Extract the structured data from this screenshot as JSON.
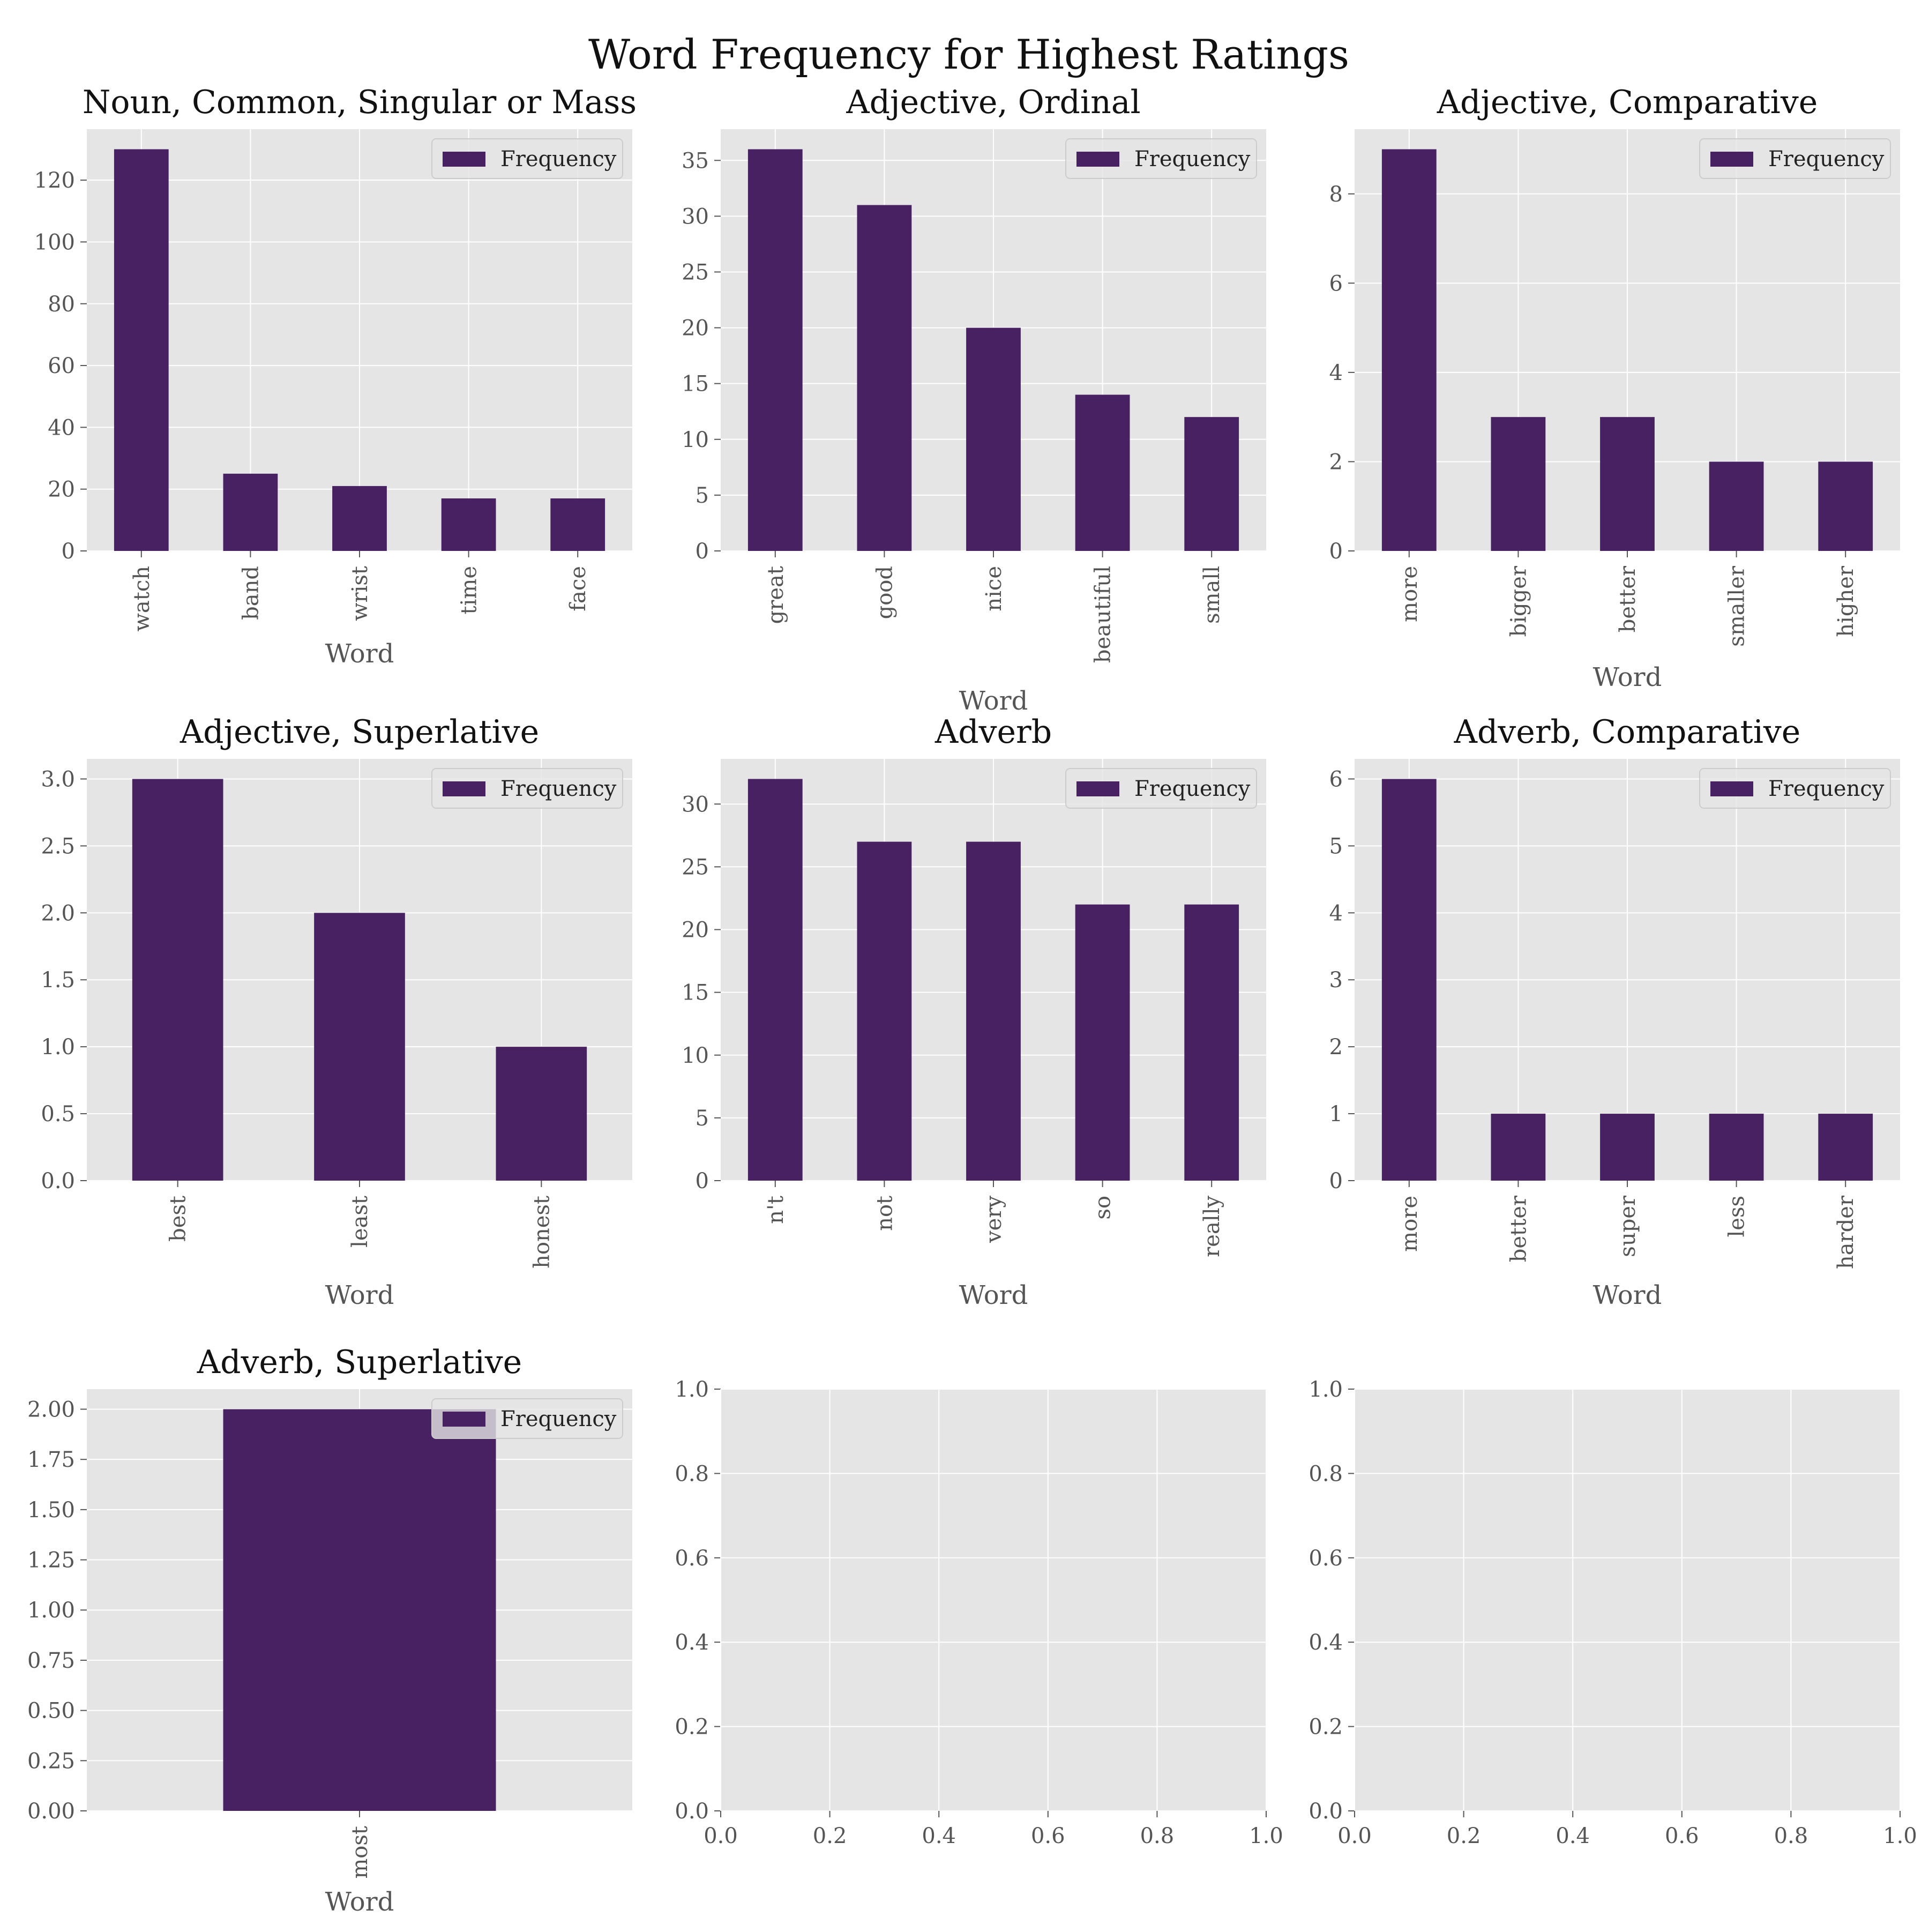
{
  "figure": {
    "title": "Word Frequency for Highest Ratings",
    "bar_color": "#482162",
    "axes_facecolor": "#e5e5e5",
    "grid_color": "#ffffff",
    "legend_label": "Frequency"
  },
  "chart_data": [
    {
      "type": "bar",
      "title": "Noun, Common, Singular or Mass",
      "xlabel": "Word",
      "ylabel": "",
      "categories": [
        "watch",
        "band",
        "wrist",
        "time",
        "face"
      ],
      "series": [
        {
          "name": "Frequency",
          "values": [
            130,
            25,
            21,
            17,
            17
          ]
        }
      ],
      "ylim": [
        0,
        136.5
      ],
      "yticks": [
        0,
        20,
        40,
        60,
        80,
        100,
        120
      ],
      "ytick_labels": [
        "0",
        "20",
        "40",
        "60",
        "80",
        "100",
        "120"
      ],
      "grid": true,
      "legend": "top-right"
    },
    {
      "type": "bar",
      "title": "Adjective, Ordinal",
      "xlabel": "Word",
      "ylabel": "",
      "categories": [
        "great",
        "good",
        "nice",
        "beautiful",
        "small"
      ],
      "series": [
        {
          "name": "Frequency",
          "values": [
            36,
            31,
            20,
            14,
            12
          ]
        }
      ],
      "ylim": [
        0,
        37.8
      ],
      "yticks": [
        0,
        5,
        10,
        15,
        20,
        25,
        30,
        35
      ],
      "ytick_labels": [
        "0",
        "5",
        "10",
        "15",
        "20",
        "25",
        "30",
        "35"
      ],
      "grid": true,
      "legend": "top-right"
    },
    {
      "type": "bar",
      "title": "Adjective, Comparative",
      "xlabel": "Word",
      "ylabel": "",
      "categories": [
        "more",
        "bigger",
        "better",
        "smaller",
        "higher"
      ],
      "series": [
        {
          "name": "Frequency",
          "values": [
            9,
            3,
            3,
            2,
            2
          ]
        }
      ],
      "ylim": [
        0,
        9.45
      ],
      "yticks": [
        0,
        2,
        4,
        6,
        8
      ],
      "ytick_labels": [
        "0",
        "2",
        "4",
        "6",
        "8"
      ],
      "grid": true,
      "legend": "top-right"
    },
    {
      "type": "bar",
      "title": "Adjective, Superlative",
      "xlabel": "Word",
      "ylabel": "",
      "categories": [
        "best",
        "least",
        "honest"
      ],
      "series": [
        {
          "name": "Frequency",
          "values": [
            3,
            2,
            1
          ]
        }
      ],
      "ylim": [
        0,
        3.15
      ],
      "yticks": [
        0,
        0.5,
        1,
        1.5,
        2,
        2.5,
        3
      ],
      "ytick_labels": [
        "0.0",
        "0.5",
        "1.0",
        "1.5",
        "2.0",
        "2.5",
        "3.0"
      ],
      "grid": true,
      "legend": "top-right"
    },
    {
      "type": "bar",
      "title": "Adverb",
      "xlabel": "Word",
      "ylabel": "",
      "categories": [
        "n't",
        "not",
        "very",
        "so",
        "really"
      ],
      "series": [
        {
          "name": "Frequency",
          "values": [
            32,
            27,
            27,
            22,
            22
          ]
        }
      ],
      "ylim": [
        0,
        33.6
      ],
      "yticks": [
        0,
        5,
        10,
        15,
        20,
        25,
        30
      ],
      "ytick_labels": [
        "0",
        "5",
        "10",
        "15",
        "20",
        "25",
        "30"
      ],
      "grid": true,
      "legend": "top-right"
    },
    {
      "type": "bar",
      "title": "Adverb, Comparative",
      "xlabel": "Word",
      "ylabel": "",
      "categories": [
        "more",
        "better",
        "super",
        "less",
        "harder"
      ],
      "series": [
        {
          "name": "Frequency",
          "values": [
            6,
            1,
            1,
            1,
            1
          ]
        }
      ],
      "ylim": [
        0,
        6.3
      ],
      "yticks": [
        0,
        1,
        2,
        3,
        4,
        5,
        6
      ],
      "ytick_labels": [
        "0",
        "1",
        "2",
        "3",
        "4",
        "5",
        "6"
      ],
      "grid": true,
      "legend": "top-right"
    },
    {
      "type": "bar",
      "title": "Adverb, Superlative",
      "xlabel": "Word",
      "ylabel": "",
      "categories": [
        "most"
      ],
      "series": [
        {
          "name": "Frequency",
          "values": [
            2
          ]
        }
      ],
      "ylim": [
        0,
        2.1
      ],
      "yticks": [
        0,
        0.25,
        0.5,
        0.75,
        1,
        1.25,
        1.5,
        1.75,
        2
      ],
      "ytick_labels": [
        "0.00",
        "0.25",
        "0.50",
        "0.75",
        "1.00",
        "1.25",
        "1.50",
        "1.75",
        "2.00"
      ],
      "grid": true,
      "legend": "top-right"
    },
    {
      "type": "empty",
      "title": "",
      "xlim": [
        0,
        1
      ],
      "ylim": [
        0,
        1
      ],
      "xticks": [
        0,
        0.2,
        0.4,
        0.6,
        0.8,
        1
      ],
      "xtick_labels": [
        "0.0",
        "0.2",
        "0.4",
        "0.6",
        "0.8",
        "1.0"
      ],
      "yticks": [
        0,
        0.2,
        0.4,
        0.6,
        0.8,
        1
      ],
      "ytick_labels": [
        "0.0",
        "0.2",
        "0.4",
        "0.6",
        "0.8",
        "1.0"
      ],
      "grid": true
    },
    {
      "type": "empty",
      "title": "",
      "xlim": [
        0,
        1
      ],
      "ylim": [
        0,
        1
      ],
      "xticks": [
        0,
        0.2,
        0.4,
        0.6,
        0.8,
        1
      ],
      "xtick_labels": [
        "0.0",
        "0.2",
        "0.4",
        "0.6",
        "0.8",
        "1.0"
      ],
      "yticks": [
        0,
        0.2,
        0.4,
        0.6,
        0.8,
        1
      ],
      "ytick_labels": [
        "0.0",
        "0.2",
        "0.4",
        "0.6",
        "0.8",
        "1.0"
      ],
      "grid": true
    }
  ]
}
